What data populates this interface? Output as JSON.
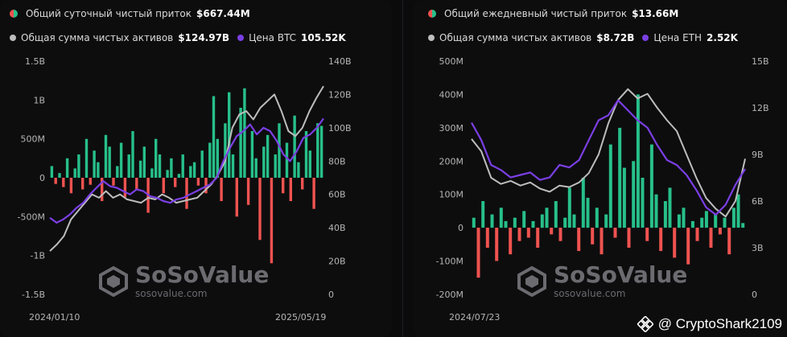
{
  "left": {
    "legend_flow_label": "Общий суточный чистый приток",
    "legend_flow_value": "$667.44M",
    "legend_assets_label": "Общая сумма чистых активов",
    "legend_assets_value": "$124.97B",
    "legend_price_label": "Цена BTC",
    "legend_price_value": "105.52K",
    "date_start": "2024/01/10",
    "date_end": "2025/05/19",
    "watermark_brand": "SoSoValue",
    "watermark_url": "sosovalue.com"
  },
  "right": {
    "legend_flow_label": "Общий ежедневный чистый приток",
    "legend_flow_value": "$13.66M",
    "legend_assets_label": "Общая сумма чистых активов",
    "legend_assets_value": "$8.72B",
    "legend_price_label": "Цена ETH",
    "legend_price_value": "2.52K",
    "date_start": "2024/07/23",
    "watermark_brand": "SoSoValue",
    "watermark_url": "sosovalue.com"
  },
  "credit": {
    "text": "@ CryptoShark2109",
    "icon": "binance-icon"
  },
  "colors": {
    "inflow": "#27c08a",
    "outflow": "#ef5350",
    "assets": "#bdbdbd",
    "price": "#7b3fe4"
  },
  "chart_data": [
    {
      "type": "bar",
      "series": [
        {
          "name": "Общий суточный чистый приток",
          "unit": "USD",
          "values": [
            150,
            -80,
            60,
            -120,
            250,
            -200,
            120,
            300,
            -150,
            500,
            -90,
            350,
            200,
            -300,
            550,
            400,
            -100,
            150,
            450,
            -250,
            300,
            600,
            -150,
            220,
            400,
            -450,
            120,
            500,
            300,
            -200,
            100,
            250,
            -120,
            50,
            300,
            -400,
            150,
            200,
            -100,
            350,
            -200,
            450,
            1050,
            500,
            -300,
            700,
            1100,
            300,
            -500,
            900,
            1150,
            -350,
            600,
            250,
            -800,
            400,
            550,
            -1100,
            300,
            700,
            -200,
            450,
            -300,
            800,
            200,
            -150,
            600,
            350,
            -400,
            700,
            667
          ]
        },
        {
          "name": "Общая сумма чистых активов",
          "unit": "USD",
          "values": [
            26,
            30,
            35,
            45,
            50,
            55,
            60,
            58,
            62,
            58,
            60,
            57,
            56,
            55,
            58,
            57,
            60,
            58,
            55,
            56,
            57,
            58,
            62,
            66,
            72,
            80,
            100,
            108,
            110,
            105,
            112,
            116,
            120,
            110,
            98,
            95,
            100,
            110,
            118,
            124.97
          ]
        },
        {
          "name": "Цена BTC",
          "unit": "USD",
          "values": [
            46,
            43,
            45,
            48,
            52,
            55,
            60,
            64,
            68,
            65,
            64,
            62,
            60,
            63,
            62,
            59,
            58,
            56,
            55,
            57,
            58,
            60,
            62,
            64,
            66,
            70,
            80,
            88,
            95,
            98,
            102,
            96,
            100,
            98,
            92,
            84,
            80,
            86,
            94,
            96,
            100,
            105.52
          ]
        }
      ],
      "x_range": [
        "2024/01/10",
        "2025/05/19"
      ],
      "y_left_ticks": [
        "1.5B",
        "1B",
        "500M",
        "0",
        "-500M",
        "-1B",
        "-1.5B"
      ],
      "y_right_ticks": [
        "140B",
        "120B",
        "100B",
        "80B",
        "60B",
        "40B",
        "20B",
        "0"
      ],
      "y_left_range": [
        -1500000000,
        1500000000
      ],
      "y_right_range": [
        0,
        140000000000
      ]
    },
    {
      "type": "bar",
      "series": [
        {
          "name": "Общий ежедневный чистый приток",
          "unit": "USD",
          "values": [
            30,
            -150,
            80,
            -60,
            40,
            -100,
            60,
            20,
            -80,
            30,
            -40,
            50,
            -30,
            20,
            -60,
            40,
            60,
            -20,
            80,
            -40,
            30,
            120,
            40,
            -70,
            150,
            90,
            -50,
            60,
            -80,
            40,
            250,
            -30,
            300,
            180,
            -60,
            200,
            400,
            150,
            -40,
            250,
            100,
            -70,
            80,
            120,
            -90,
            40,
            60,
            -110,
            20,
            -40,
            30,
            50,
            -60,
            40,
            -20,
            30,
            -80,
            60,
            100,
            14
          ]
        },
        {
          "name": "Общая сумма чистых активов",
          "unit": "USD",
          "values": [
            10,
            9.2,
            7.5,
            7.1,
            7.3,
            7.0,
            7.2,
            6.8,
            6.6,
            7.0,
            6.9,
            7.2,
            7.8,
            9.0,
            11.0,
            12.5,
            13.2,
            12.6,
            12.9,
            12.0,
            11.2,
            10.5,
            9.0,
            7.5,
            6.2,
            5.5,
            5.0,
            6.0,
            8.72
          ]
        },
        {
          "name": "Цена ETH",
          "unit": "USD",
          "values": [
            3.45,
            3.1,
            2.6,
            2.5,
            2.35,
            2.4,
            2.45,
            2.3,
            2.35,
            2.6,
            2.55,
            2.7,
            3.1,
            3.5,
            3.6,
            3.9,
            3.7,
            3.5,
            3.35,
            3.0,
            2.7,
            2.6,
            2.4,
            2.1,
            1.75,
            1.6,
            1.8,
            2.2,
            2.52
          ]
        }
      ],
      "x_start": "2024/07/23",
      "y_left_ticks": [
        "500M",
        "400M",
        "300M",
        "200M",
        "100M",
        "0",
        "-100M",
        "-200M"
      ],
      "y_right_ticks": [
        "15B",
        "12B",
        "9B",
        "6B",
        "3B",
        "0"
      ],
      "y_left_range": [
        -200000000,
        500000000
      ],
      "y_right_range": [
        0,
        15000000000
      ]
    }
  ]
}
